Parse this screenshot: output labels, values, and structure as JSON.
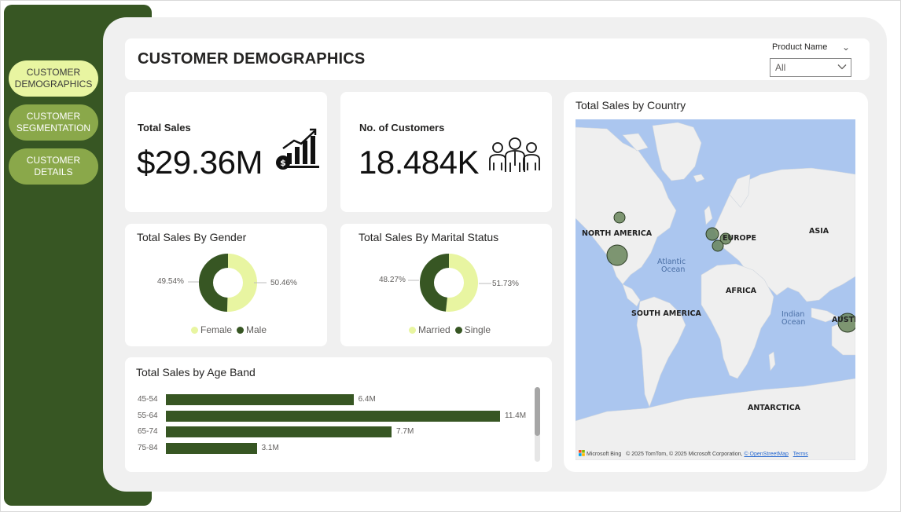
{
  "sidebar": {
    "items": [
      {
        "line1": "CUSTOMER",
        "line2": "DEMOGRAPHICS",
        "active": true
      },
      {
        "line1": "CUSTOMER",
        "line2": "SEGMENTATION",
        "active": false
      },
      {
        "line1": "CUSTOMER",
        "line2": "DETAILS",
        "active": false
      }
    ]
  },
  "header": {
    "title": "CUSTOMER DEMOGRAPHICS",
    "slicer": {
      "label": "Product Name",
      "value": "All"
    }
  },
  "kpis": {
    "total_sales": {
      "title": "Total Sales",
      "value": "$29.36M",
      "icon": "growth-chart-icon"
    },
    "customers": {
      "title": "No. of Customers",
      "value": "18.484K",
      "icon": "people-group-icon"
    }
  },
  "gender": {
    "title": "Total Sales By Gender",
    "left_pct": "49.54%",
    "right_pct": "50.46%",
    "legend": [
      "Female",
      "Male"
    ]
  },
  "marital": {
    "title": "Total Sales By Marital Status",
    "left_pct": "48.27%",
    "right_pct": "51.73%",
    "legend": [
      "Married",
      "Single"
    ]
  },
  "age": {
    "title": "Total Sales by Age Band",
    "rows": [
      {
        "band": "45-54",
        "label": "6.4M"
      },
      {
        "band": "55-64",
        "label": "11.4M"
      },
      {
        "band": "65-74",
        "label": "7.7M"
      },
      {
        "band": "75-84",
        "label": "3.1M"
      }
    ]
  },
  "map": {
    "title": "Total Sales by Country",
    "labels": {
      "north_america": "NORTH AMERICA",
      "europe": "EUROPE",
      "asia": "ASIA",
      "atlantic_1": "Atlantic",
      "atlantic_2": "Ocean",
      "africa": "AFRICA",
      "south_america": "SOUTH AMERICA",
      "indian_1": "Indian",
      "indian_2": "Ocean",
      "australia": "AUSTR",
      "antarctica": "ANTARCTICA"
    },
    "credit": {
      "brand": "Microsoft Bing",
      "text": "© 2025 TomTom, © 2025 Microsoft Corporation, ",
      "osm": "© OpenStreetMap",
      "terms": "Terms"
    }
  },
  "colors": {
    "dark_green": "#375623",
    "light_yellow": "#e8f5a1",
    "mid_green": "#8aa84a",
    "canvas": "#f0f0f0",
    "ocean": "#abc6ef",
    "land": "#efefef"
  },
  "chart_data": [
    {
      "type": "pie",
      "title": "Total Sales By Gender",
      "categories": [
        "Female",
        "Male"
      ],
      "values": [
        50.46,
        49.54
      ],
      "colors": [
        "#e8f5a1",
        "#375623"
      ]
    },
    {
      "type": "pie",
      "title": "Total Sales By Marital Status",
      "categories": [
        "Married",
        "Single"
      ],
      "values": [
        51.73,
        48.27
      ],
      "colors": [
        "#e8f5a1",
        "#375623"
      ]
    },
    {
      "type": "bar",
      "orientation": "horizontal",
      "title": "Total Sales by Age Band",
      "categories": [
        "45-54",
        "55-64",
        "65-74",
        "75-84"
      ],
      "values": [
        6.4,
        11.4,
        7.7,
        3.1
      ],
      "unit": "M",
      "xlim": [
        0,
        12
      ]
    }
  ]
}
